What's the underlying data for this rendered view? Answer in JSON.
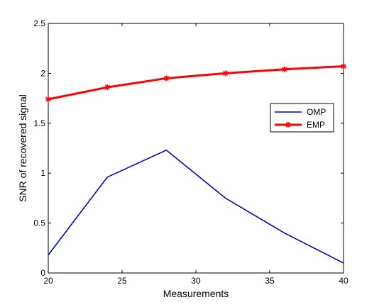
{
  "chart_data": {
    "type": "line",
    "xlabel": "Measurements",
    "ylabel": "SNR of recovered signal",
    "xlim": [
      20,
      40
    ],
    "ylim": [
      0,
      2.5
    ],
    "x_ticks": [
      20,
      25,
      30,
      35,
      40
    ],
    "y_ticks": [
      0,
      0.5,
      1,
      1.5,
      2,
      2.5
    ],
    "x_tick_labels": [
      "20",
      "25",
      "30",
      "35",
      "40"
    ],
    "y_tick_labels": [
      "0",
      "0.5",
      "1",
      "1.5",
      "2",
      "2.5"
    ],
    "grid": false,
    "legend_position": "right",
    "series": [
      {
        "name": "OMP",
        "color": "#0000c0",
        "marker": "none",
        "x": [
          20,
          24,
          28,
          32,
          36,
          40
        ],
        "y": [
          0.18,
          0.96,
          1.23,
          0.75,
          0.4,
          0.1
        ]
      },
      {
        "name": "EMP",
        "color": "#ff0000",
        "marker": "star",
        "x": [
          20,
          24,
          28,
          32,
          36,
          40
        ],
        "y": [
          1.74,
          1.86,
          1.95,
          2.0,
          2.04,
          2.07
        ]
      }
    ]
  }
}
